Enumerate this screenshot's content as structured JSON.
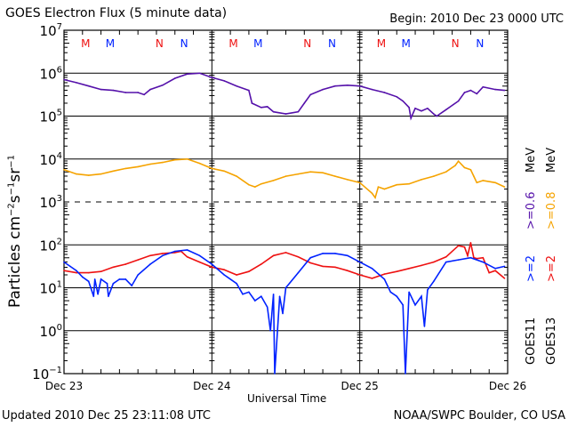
{
  "header": {
    "title": "GOES Electron Flux (5 minute data)",
    "begin": "Begin: 2010 Dec 23 0000 UTC"
  },
  "footer": {
    "updated": "Updated 2010 Dec 25 23:11:08 UTC",
    "credit": "NOAA/SWPC Boulder, CO USA"
  },
  "legend": {
    "goes11": "GOES11",
    "goes13": "GOES13",
    "g11_2mev": ">=2",
    "g13_2mev": ">=2",
    "g11_06mev": ">=0.6",
    "g13_08mev": ">=0.8",
    "mev": "MeV",
    "mev2": "MeV"
  },
  "colors": {
    "goes11_2mev": "#0022ff",
    "goes13_2mev": "#ee1111",
    "goes11_06mev": "#5511aa",
    "goes13_08mev": "#f5a300",
    "midnight_marker": "#ee1111",
    "noon_marker": "#0022ff"
  },
  "markers": [
    {
      "label": "M",
      "hour": 3.5,
      "sat": "GOES13"
    },
    {
      "label": "M",
      "hour": 7.5,
      "sat": "GOES11"
    },
    {
      "label": "N",
      "hour": 15.5,
      "sat": "GOES13"
    },
    {
      "label": "N",
      "hour": 19.5,
      "sat": "GOES11"
    },
    {
      "label": "M",
      "hour": 27.5,
      "sat": "GOES13"
    },
    {
      "label": "M",
      "hour": 31.5,
      "sat": "GOES11"
    },
    {
      "label": "N",
      "hour": 39.5,
      "sat": "GOES13"
    },
    {
      "label": "N",
      "hour": 43.5,
      "sat": "GOES11"
    },
    {
      "label": "M",
      "hour": 51.5,
      "sat": "GOES13"
    },
    {
      "label": "M",
      "hour": 55.5,
      "sat": "GOES11"
    },
    {
      "label": "N",
      "hour": 63.5,
      "sat": "GOES13"
    },
    {
      "label": "N",
      "hour": 67.5,
      "sat": "GOES11"
    }
  ],
  "chart_data": {
    "type": "line",
    "title": "GOES Electron Flux (5 minute data)",
    "xlabel": "Universal Time",
    "ylabel": "Particles cm-2 s-1 sr-1",
    "x_unit": "hours since 2010 Dec 23 0000 UTC",
    "xlim": [
      0,
      72
    ],
    "yscale": "log",
    "ylim_log10": [
      -1,
      7
    ],
    "x_ticks": [
      {
        "hour": 0,
        "label": "Dec 23"
      },
      {
        "hour": 24,
        "label": "Dec 24"
      },
      {
        "hour": 48,
        "label": "Dec 25"
      },
      {
        "hour": 72,
        "label": "Dec 26"
      }
    ],
    "y_ticks": [
      {
        "exp": 7,
        "label": "10",
        "sup": "7"
      },
      {
        "exp": 6,
        "label": "10",
        "sup": "6"
      },
      {
        "exp": 5,
        "label": "10",
        "sup": "5"
      },
      {
        "exp": 4,
        "label": "10",
        "sup": "4"
      },
      {
        "exp": 3,
        "label": "10",
        "sup": "3"
      },
      {
        "exp": 2,
        "label": "10",
        "sup": "2"
      },
      {
        "exp": 1,
        "label": "10",
        "sup": "1"
      },
      {
        "exp": 0,
        "label": "10",
        "sup": "0"
      },
      {
        "exp": -1,
        "label": "10",
        "sup": "−1"
      }
    ],
    "grid": "horizontal lines at each decade; 10^3 dashed",
    "series": [
      {
        "name": "GOES11 >=0.6 MeV",
        "color": "#5511aa",
        "x": [
          0,
          2,
          4,
          6,
          8,
          10,
          12,
          13,
          14,
          16,
          18,
          20,
          22,
          24,
          26,
          28,
          30,
          30.5,
          32,
          33,
          34,
          36,
          38,
          39,
          40,
          42,
          44,
          46,
          48,
          50,
          52,
          54,
          55,
          56,
          56.3,
          57,
          58,
          59,
          60,
          60.5,
          62,
          64,
          65,
          66,
          67,
          68,
          70,
          71.5
        ],
        "log10": [
          5.85,
          5.78,
          5.7,
          5.62,
          5.6,
          5.55,
          5.55,
          5.5,
          5.62,
          5.72,
          5.88,
          5.98,
          6.0,
          5.9,
          5.82,
          5.7,
          5.6,
          5.3,
          5.2,
          5.22,
          5.1,
          5.05,
          5.1,
          5.3,
          5.5,
          5.62,
          5.7,
          5.72,
          5.7,
          5.62,
          5.55,
          5.45,
          5.35,
          5.2,
          4.95,
          5.18,
          5.12,
          5.18,
          5.05,
          5.0,
          5.15,
          5.35,
          5.55,
          5.6,
          5.52,
          5.68,
          5.62,
          5.6
        ]
      },
      {
        "name": "GOES13 >=0.8 MeV",
        "color": "#f5a300",
        "x": [
          0,
          2,
          4,
          6,
          8,
          10,
          12,
          14,
          16,
          18,
          20,
          22,
          24,
          26,
          28,
          30,
          31,
          32,
          34,
          36,
          38,
          40,
          42,
          44,
          46,
          48,
          50,
          50.5,
          51,
          52,
          54,
          56,
          58,
          60,
          62,
          63.5,
          64,
          65,
          66,
          66.5,
          67,
          68,
          70,
          71.5
        ],
        "log10": [
          3.75,
          3.65,
          3.62,
          3.65,
          3.72,
          3.78,
          3.82,
          3.88,
          3.92,
          3.98,
          4.0,
          3.9,
          3.78,
          3.72,
          3.6,
          3.4,
          3.35,
          3.42,
          3.5,
          3.6,
          3.65,
          3.7,
          3.68,
          3.6,
          3.52,
          3.45,
          3.2,
          3.1,
          3.35,
          3.3,
          3.4,
          3.42,
          3.52,
          3.6,
          3.7,
          3.85,
          3.95,
          3.8,
          3.75,
          3.6,
          3.45,
          3.5,
          3.45,
          3.35
        ]
      },
      {
        "name": "GOES13 >=2 MeV",
        "color": "#ee1111",
        "x": [
          0,
          2,
          4,
          6,
          8,
          10,
          12,
          14,
          16,
          18,
          19,
          20,
          22,
          24,
          26,
          28,
          30,
          32,
          34,
          36,
          38,
          40,
          42,
          44,
          46,
          48,
          50,
          52,
          54,
          56,
          58,
          60,
          62,
          64,
          65,
          65.5,
          66,
          66.5,
          67,
          68,
          69,
          70,
          71.5
        ],
        "log10": [
          1.4,
          1.35,
          1.35,
          1.38,
          1.48,
          1.55,
          1.65,
          1.75,
          1.8,
          1.82,
          1.85,
          1.72,
          1.6,
          1.48,
          1.42,
          1.3,
          1.38,
          1.55,
          1.75,
          1.82,
          1.72,
          1.58,
          1.5,
          1.48,
          1.4,
          1.3,
          1.22,
          1.32,
          1.38,
          1.45,
          1.52,
          1.6,
          1.72,
          1.98,
          1.95,
          1.75,
          2.05,
          1.7,
          1.68,
          1.7,
          1.35,
          1.4,
          1.22
        ]
      },
      {
        "name": "GOES11 >=2 MeV",
        "color": "#0022ff",
        "x": [
          0,
          1,
          2,
          3,
          4,
          4.8,
          5,
          5.5,
          6,
          7,
          7.2,
          8,
          9,
          10,
          11,
          12,
          14,
          16,
          18,
          20,
          22,
          24,
          26,
          28,
          29,
          30,
          31,
          32,
          33,
          33.5,
          34,
          34.2,
          35,
          35.5,
          36,
          38,
          40,
          42,
          44,
          46,
          48,
          50,
          52,
          53,
          54,
          55,
          55.4,
          56,
          57,
          58,
          58.5,
          59,
          60,
          62,
          64,
          66,
          68,
          70,
          71.5
        ],
        "log10": [
          1.6,
          1.5,
          1.4,
          1.25,
          1.15,
          0.8,
          1.2,
          0.85,
          1.2,
          1.1,
          0.8,
          1.1,
          1.2,
          1.2,
          1.05,
          1.3,
          1.55,
          1.75,
          1.85,
          1.88,
          1.75,
          1.55,
          1.3,
          1.1,
          0.85,
          0.9,
          0.7,
          0.8,
          0.55,
          0.0,
          0.85,
          -1.0,
          0.8,
          0.4,
          1.0,
          1.35,
          1.7,
          1.8,
          1.8,
          1.75,
          1.6,
          1.45,
          1.2,
          0.9,
          0.8,
          0.6,
          -1.0,
          0.9,
          0.6,
          0.8,
          0.1,
          0.95,
          1.15,
          1.6,
          1.65,
          1.7,
          1.6,
          1.45,
          1.5
        ]
      }
    ]
  }
}
